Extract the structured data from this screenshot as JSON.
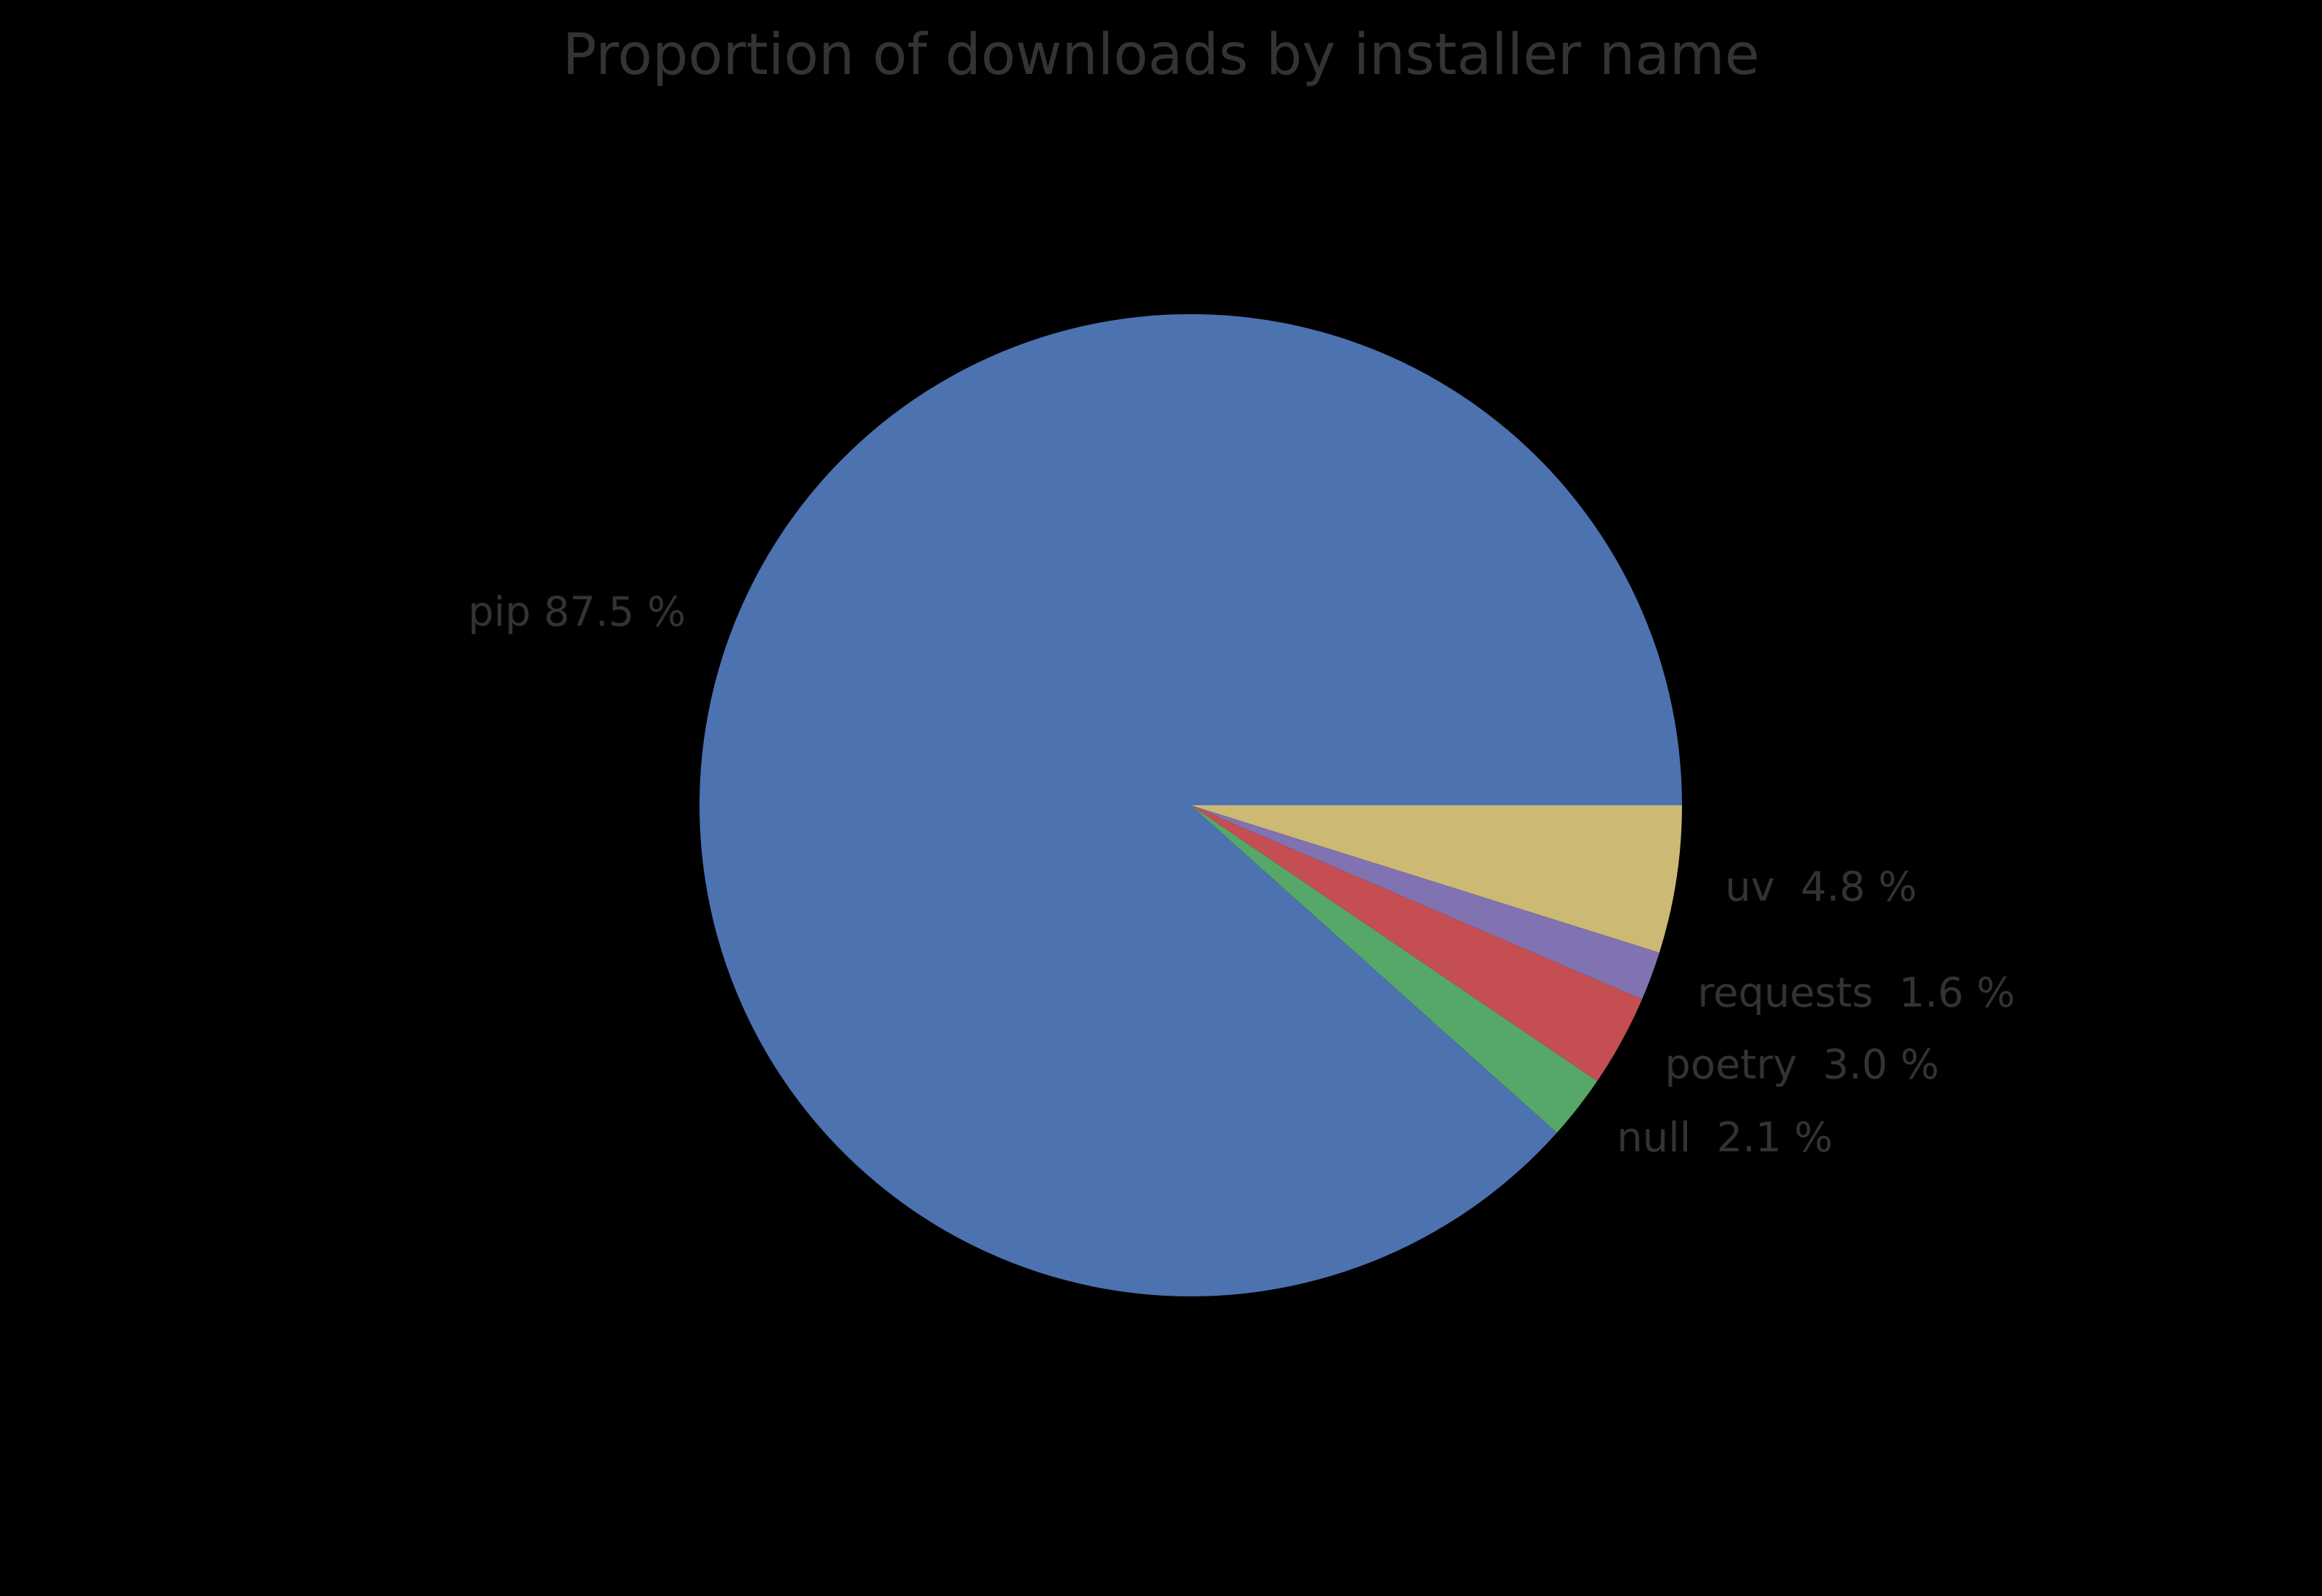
{
  "title": "Proportion of downloads by installer name",
  "colors": {
    "background": "#000000",
    "text": "#333335"
  },
  "chart_data": {
    "type": "pie",
    "title": "Proportion of downloads by installer name",
    "unit": "%",
    "start_angle_deg": 0,
    "direction": "clockwise",
    "legend_position": "none",
    "labels_position": "outside-radial",
    "slices": [
      {
        "name": "uv",
        "value": 4.8,
        "label": "uv  4.8 %",
        "color": "#CCB974"
      },
      {
        "name": "requests",
        "value": 1.6,
        "label": "requests  1.6 %",
        "color": "#8172B2"
      },
      {
        "name": "poetry",
        "value": 3.0,
        "label": "poetry  3.0 %",
        "color": "#C44E52"
      },
      {
        "name": "null",
        "value": 2.1,
        "label": "null  2.1 %",
        "color": "#55A868"
      },
      {
        "name": "pip",
        "value": 87.5,
        "label": "pip 87.5 %",
        "color": "#4C72B0"
      }
    ]
  }
}
